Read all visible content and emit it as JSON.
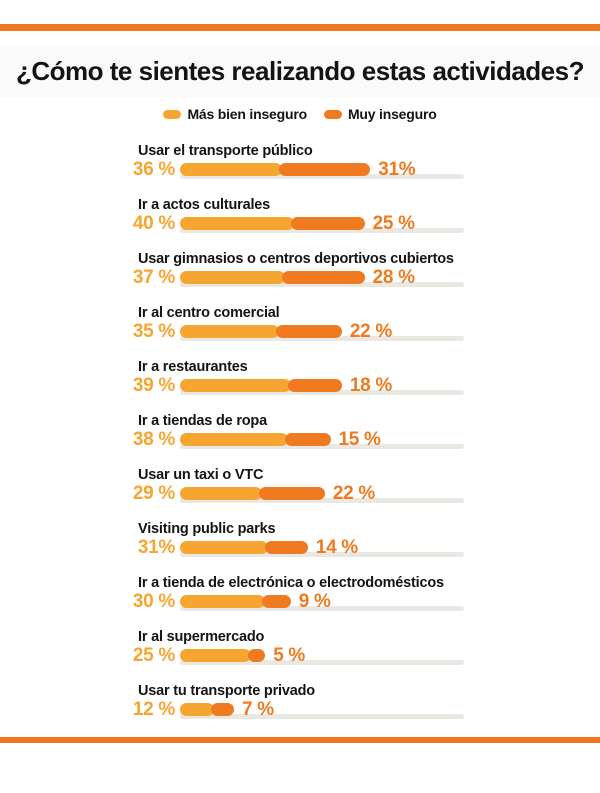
{
  "title": "¿Cómo te sientes realizando estas actividades?",
  "colors": {
    "light": "#F7A531",
    "dark": "#EF7A1F",
    "rule": "#F1771E",
    "track": "#E9E8E3",
    "text": "#141414"
  },
  "legend": [
    {
      "label": "Más bien inseguro",
      "color_key": "light"
    },
    {
      "label": "Muy inseguro",
      "color_key": "dark"
    }
  ],
  "chart_data": {
    "type": "bar",
    "orientation": "horizontal",
    "stacked": true,
    "unit": "%",
    "xlim": [
      0,
      100
    ],
    "grid": false,
    "legend_position": "top-center",
    "title": "¿Cómo te sientes realizando estas actividades?",
    "categories": [
      "Usar el transporte público",
      "Ir a actos culturales",
      "Usar gimnasios o centros deportivos cubiertos",
      "Ir al centro comercial",
      "Ir a restaurantes",
      "Ir a tiendas de ropa",
      "Usar un taxi o VTC",
      "Visiting public parks",
      "Ir a tienda de electrónica o electrodomésticos",
      "Ir al supermercado",
      "Usar tu transporte privado"
    ],
    "series": [
      {
        "name": "Más bien inseguro",
        "values": [
          36,
          40,
          37,
          35,
          39,
          38,
          29,
          31,
          30,
          25,
          12
        ],
        "labels": [
          "36 %",
          "40 %",
          "37 %",
          "35 %",
          "39 %",
          "38 %",
          "29 %",
          "31%",
          "30 %",
          "25 %",
          "12 %"
        ]
      },
      {
        "name": "Muy inseguro",
        "values": [
          31,
          25,
          28,
          22,
          18,
          15,
          22,
          14,
          9,
          5,
          7
        ],
        "labels": [
          "31%",
          "25 %",
          "28 %",
          "22 %",
          "18 %",
          "15 %",
          "22 %",
          "14 %",
          "9 %",
          "5 %",
          "7 %"
        ]
      }
    ]
  }
}
